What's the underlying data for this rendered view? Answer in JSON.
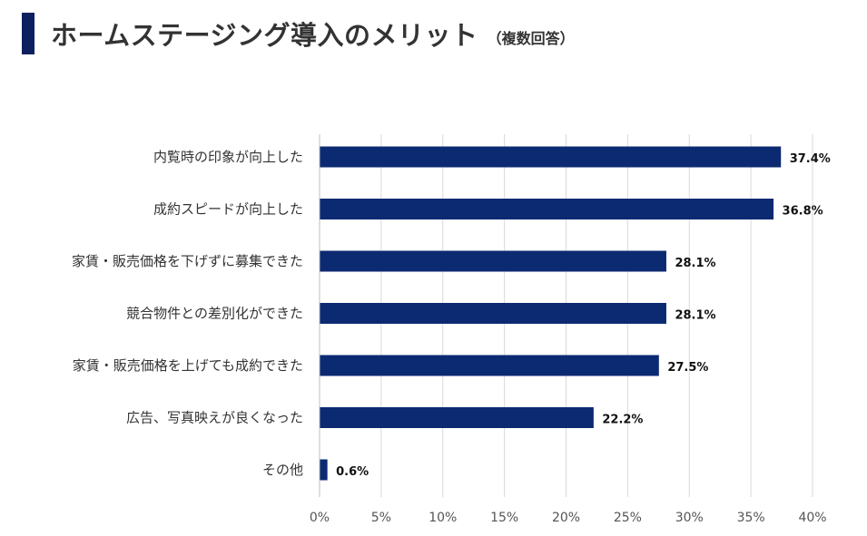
{
  "header": {
    "title": "ホームステージング導入のメリット",
    "subtitle": "（複数回答）"
  },
  "colors": {
    "accent": "#0c1f5e",
    "bar": "#0c2a72",
    "grid": "#d9d9d9"
  },
  "chart_data": {
    "type": "bar",
    "orientation": "horizontal",
    "title": "ホームステージング導入のメリット（複数回答）",
    "categories": [
      "内覧時の印象が向上した",
      "成約スピードが向上した",
      "家賃・販売価格を下げずに募集できた",
      "競合物件との差別化ができた",
      "家賃・販売価格を上げても成約できた",
      "広告、写真映えが良くなった",
      "その他"
    ],
    "values": [
      37.4,
      36.8,
      28.1,
      28.1,
      27.5,
      22.2,
      0.6
    ],
    "value_labels": [
      "37.4%",
      "36.8%",
      "28.1%",
      "28.1%",
      "27.5%",
      "22.2%",
      "0.6%"
    ],
    "xlim": [
      0,
      40
    ],
    "ticks": [
      0,
      5,
      10,
      15,
      20,
      25,
      30,
      35,
      40
    ],
    "tick_labels": [
      "0%",
      "5%",
      "10%",
      "15%",
      "20%",
      "25%",
      "30%",
      "35%",
      "40%"
    ],
    "xlabel": "",
    "ylabel": "",
    "grid": true,
    "legend": false
  }
}
